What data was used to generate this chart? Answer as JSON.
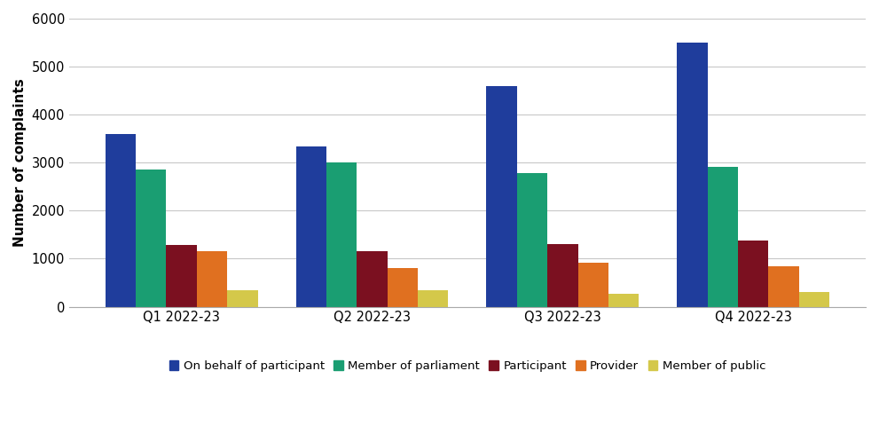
{
  "quarters": [
    "Q1 2022-23",
    "Q2 2022-23",
    "Q3 2022-23",
    "Q4 2022-23"
  ],
  "series": {
    "On behalf of participant": [
      3600,
      3330,
      4600,
      5500
    ],
    "Member of parliament": [
      2850,
      3000,
      2780,
      2920
    ],
    "Participant": [
      1280,
      1150,
      1300,
      1380
    ],
    "Provider": [
      1150,
      800,
      920,
      840
    ],
    "Member of public": [
      340,
      340,
      260,
      310
    ]
  },
  "colors": {
    "On behalf of participant": "#1f3d9c",
    "Member of parliament": "#1a9e72",
    "Participant": "#7b1020",
    "Provider": "#e07020",
    "Member of public": "#d4c84a"
  },
  "ylabel": "Number of complaints",
  "ylim": [
    0,
    6000
  ],
  "yticks": [
    0,
    1000,
    2000,
    3000,
    4000,
    5000,
    6000
  ],
  "background_color": "#ffffff",
  "grid_color": "#c8c8c8"
}
